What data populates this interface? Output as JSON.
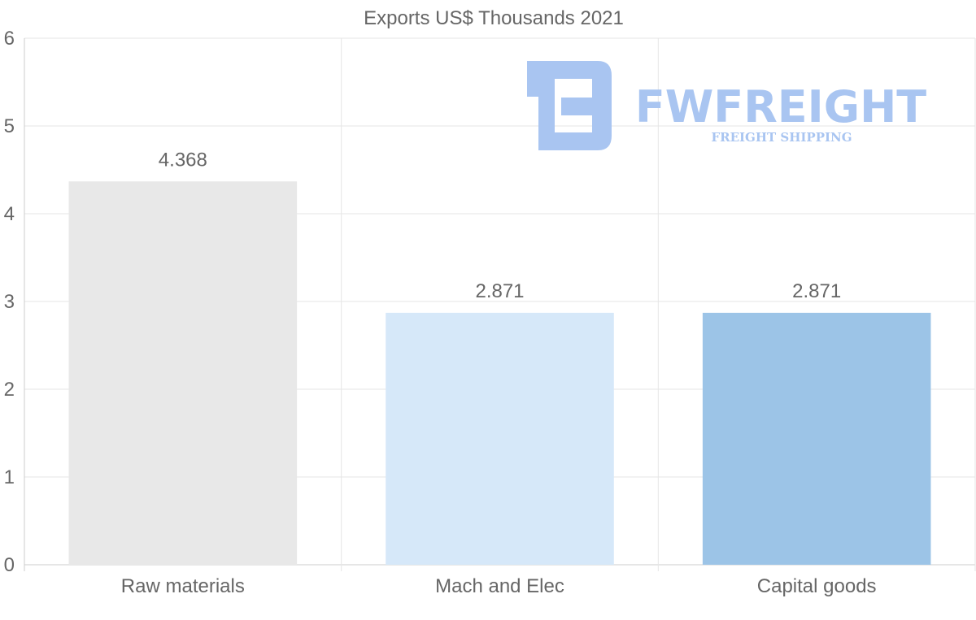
{
  "chart_data": {
    "type": "bar",
    "title": "Exports US$ Thousands 2021",
    "categories": [
      "Raw materials",
      "Mach and Elec",
      "Capital goods"
    ],
    "values": [
      4.368,
      2.871,
      2.871
    ],
    "value_labels": [
      "4.368",
      "2.871",
      "2.871"
    ],
    "bar_colors": [
      "#e8e8e8",
      "#d6e8f9",
      "#9cc4e7"
    ],
    "ylim": [
      0,
      6
    ],
    "yticks": [
      "0",
      "1",
      "2",
      "3",
      "4",
      "5",
      "6"
    ],
    "xlabel": "",
    "ylabel": "",
    "grid": true,
    "legend": "none"
  },
  "watermark": {
    "brand": "FWFREIGHT",
    "tagline": "FREIGHT SHIPPING",
    "color": "#a9c5f1"
  },
  "colors": {
    "text": "#666666",
    "grid": "#e6e6e6",
    "axis": "#cccccc"
  }
}
